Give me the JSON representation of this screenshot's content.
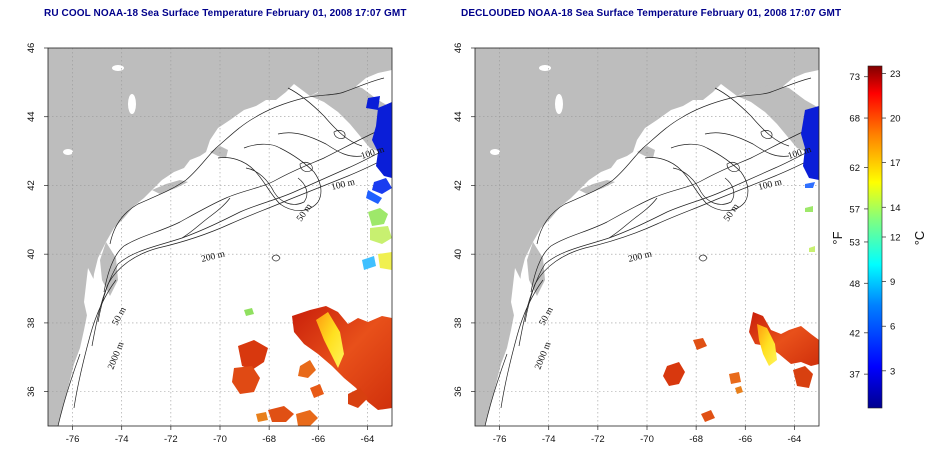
{
  "panels": [
    {
      "id": "left",
      "title": "RU COOL NOAA-18 Sea Surface Temperature February 01, 2008 17:07 GMT"
    },
    {
      "id": "right",
      "title": "DECLOUDED NOAA-18 Sea Surface Temperature February 01, 2008 17:07 GMT"
    }
  ],
  "map_axes": {
    "lon_range": [
      -77,
      -63
    ],
    "lat_range": [
      35,
      46
    ],
    "lon_ticks": [
      "-76",
      "-74",
      "-72",
      "-70",
      "-68",
      "-66",
      "-64"
    ],
    "lon_tick_values": [
      -76,
      -74,
      -72,
      -70,
      -68,
      -66,
      -64
    ],
    "lat_ticks": [
      "36",
      "38",
      "40",
      "42",
      "44",
      "46"
    ],
    "lat_tick_values": [
      36,
      38,
      40,
      42,
      44,
      46
    ],
    "grid": "dotted"
  },
  "contour_labels": {
    "left": [
      "100 m",
      "100 m",
      "50 m",
      "200 m",
      "50 m",
      "2000 m"
    ],
    "right": [
      "100 m",
      "100 m",
      "50 m",
      "200 m",
      "50 m",
      "2000 m"
    ]
  },
  "colorbar": {
    "fahrenheit_ticks": [
      "73",
      "68",
      "62",
      "57",
      "53",
      "48",
      "42",
      "37"
    ],
    "fahrenheit_values": [
      73,
      68,
      62,
      57,
      53,
      48,
      42,
      37
    ],
    "celsius_ticks": [
      "23",
      "20",
      "17",
      "14",
      "12",
      "9",
      "6",
      "3"
    ],
    "celsius_values": [
      23,
      20,
      17,
      14,
      12,
      9,
      6,
      3
    ],
    "celsius_range": [
      0.5,
      23.5
    ],
    "unit_left": "°F",
    "unit_right": "°C",
    "colors": [
      "#00008f",
      "#0000ff",
      "#0080ff",
      "#00ffff",
      "#80ff80",
      "#ffff00",
      "#ff8000",
      "#ff0000",
      "#800000"
    ]
  },
  "colors": {
    "land": "#bdbdbd",
    "ocean": "#ffffff",
    "title": "#00008b",
    "cold_water": "#0a1ed8",
    "warm_water": "#e03010"
  }
}
